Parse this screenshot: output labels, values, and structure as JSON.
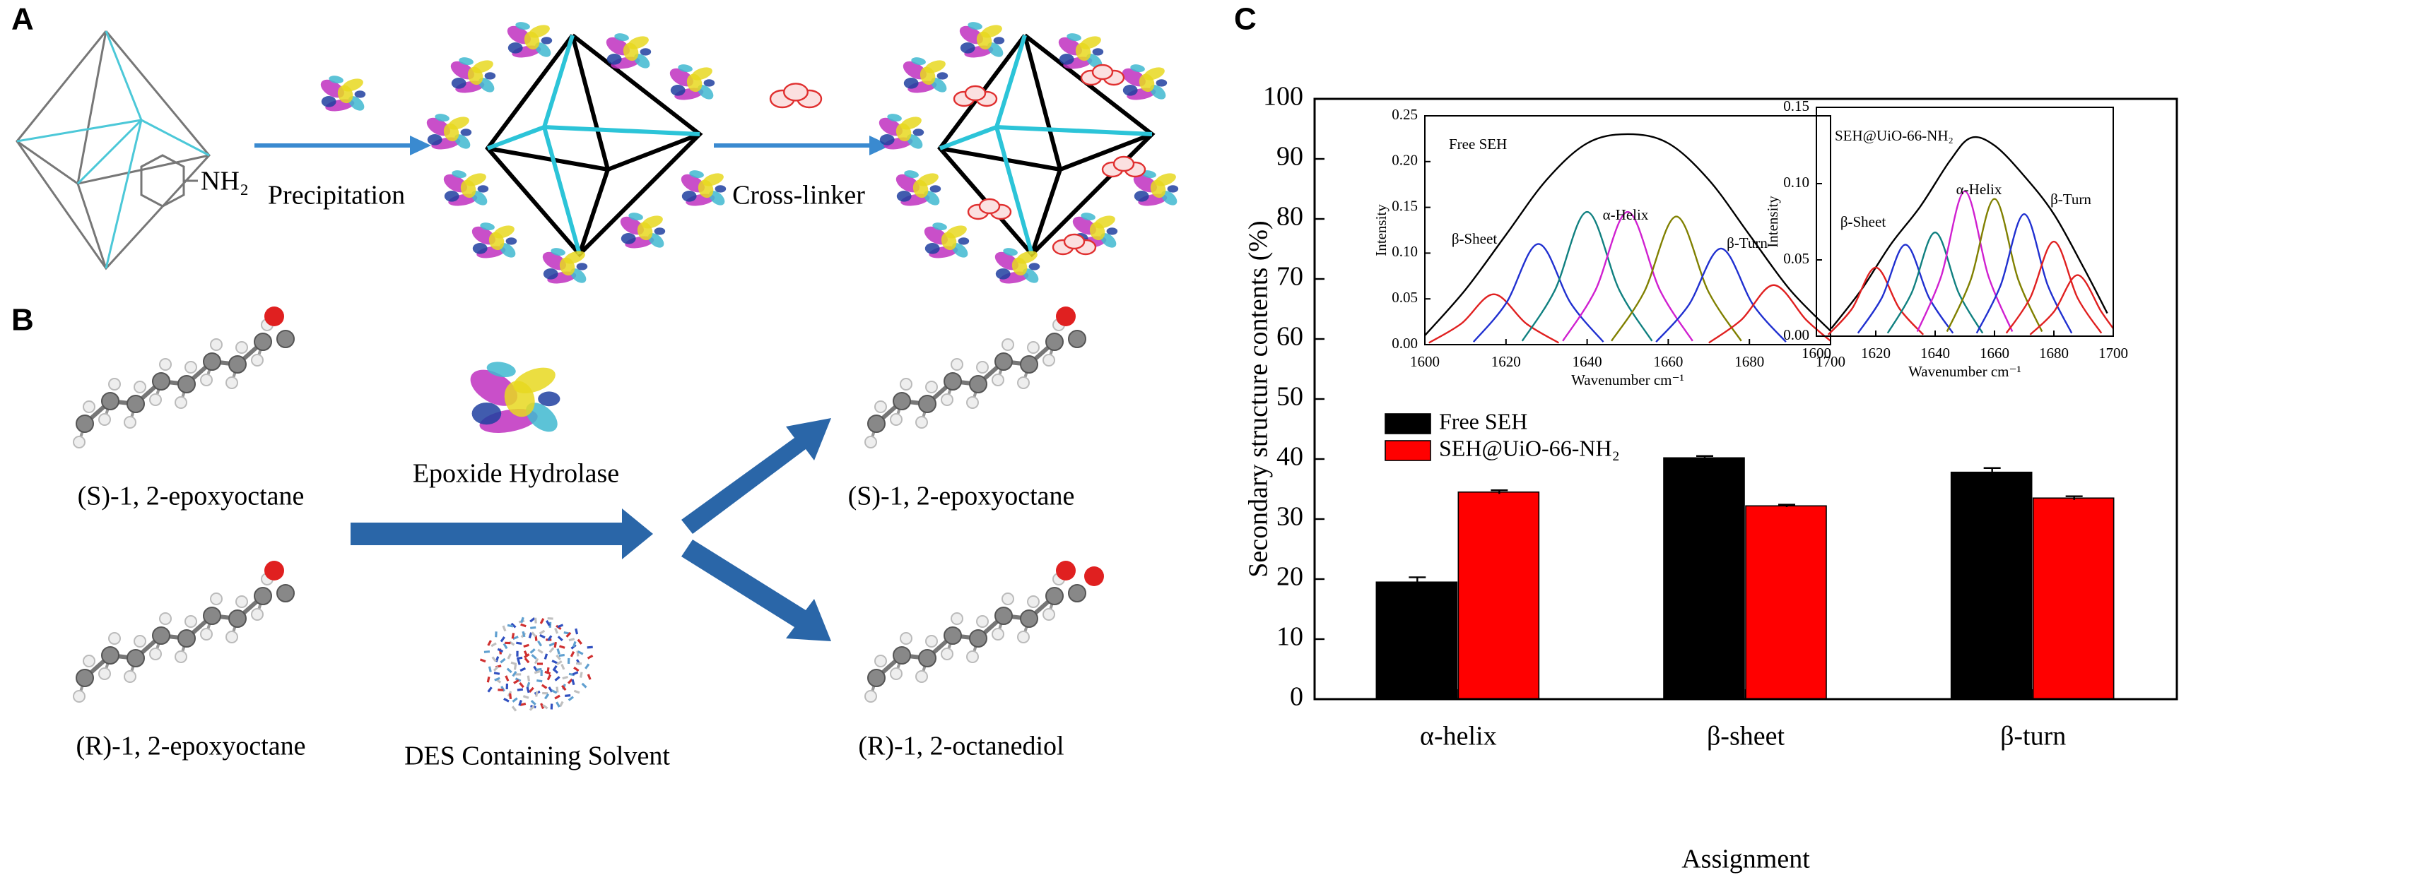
{
  "panel_a": {
    "label": "A",
    "nh2": "NH₂",
    "step1": "Precipitation",
    "step2": "Cross-linker"
  },
  "panel_b": {
    "label": "B",
    "substrate_s": "(S)-1, 2-epoxyoctane",
    "substrate_r": "(R)-1, 2-epoxyoctane",
    "enzyme": "Epoxide Hydrolase",
    "solvent": "DES Containing Solvent",
    "product_s": "(S)-1, 2-epoxyoctane",
    "product_r": "(R)-1, 2-octanediol"
  },
  "panel_c": {
    "label": "C"
  },
  "chart_data": [
    {
      "type": "bar",
      "ylabel": "Secondary structure contents (%)",
      "xlabel": "Assignment",
      "categories": [
        "α-helix",
        "β-sheet",
        "β-turn"
      ],
      "series": [
        {
          "name": "Free SEH",
          "color": "#000000",
          "values": [
            19.5,
            40.2,
            37.8
          ],
          "errors": [
            0.8,
            0.3,
            0.7
          ]
        },
        {
          "name": "SEH@UiO-66-NH₂",
          "color": "#ff0000",
          "values": [
            34.5,
            32.2,
            33.5
          ],
          "errors": [
            0.3,
            0.2,
            0.3
          ]
        }
      ],
      "ylim": [
        0,
        100
      ],
      "yticks": [
        0,
        10,
        20,
        30,
        40,
        50,
        60,
        70,
        80,
        90,
        100
      ]
    },
    {
      "type": "line",
      "title": "Free SEH",
      "ylabel": "Intensity",
      "xlabel": "Wavenumber cm⁻¹",
      "annotations": [
        "β-Sheet",
        "α-Helix",
        "β-Turn"
      ],
      "xlim": [
        1600,
        1700
      ],
      "xticks": [
        1600,
        1620,
        1640,
        1660,
        1680,
        1700
      ],
      "ylim": [
        0,
        0.25
      ],
      "yticks": [
        {
          "value": 0,
          "label": "0.00"
        },
        0.05,
        {
          "value": 0.1,
          "label": "0.10"
        },
        0.15,
        {
          "value": 0.2,
          "label": "0.20"
        },
        0.25
      ],
      "series": [
        {
          "color": "#000000",
          "x": [
            1600,
            1610,
            1620,
            1630,
            1640,
            1650,
            1660,
            1670,
            1680,
            1690,
            1700
          ],
          "values": [
            0.01,
            0.06,
            0.12,
            0.18,
            0.22,
            0.23,
            0.22,
            0.18,
            0.12,
            0.06,
            0.015
          ]
        },
        {
          "color": "#e02020",
          "x": [
            1601,
            1609,
            1617,
            1625,
            1633
          ],
          "values": [
            0.002,
            0.023,
            0.055,
            0.023,
            0.002
          ]
        },
        {
          "color": "#2030d0",
          "x": [
            1612,
            1620,
            1628,
            1636,
            1644
          ],
          "values": [
            0.003,
            0.045,
            0.11,
            0.045,
            0.003
          ]
        },
        {
          "color": "#108080",
          "x": [
            1624,
            1632,
            1640,
            1648,
            1656
          ],
          "values": [
            0.004,
            0.059,
            0.145,
            0.059,
            0.004
          ]
        },
        {
          "color": "#d020d0",
          "x": [
            1634,
            1642,
            1650,
            1658,
            1666
          ],
          "values": [
            0.004,
            0.059,
            0.145,
            0.059,
            0.004
          ]
        },
        {
          "color": "#808000",
          "x": [
            1646,
            1654,
            1662,
            1670,
            1678
          ],
          "values": [
            0.004,
            0.057,
            0.14,
            0.057,
            0.004
          ]
        },
        {
          "color": "#2030d0",
          "x": [
            1657,
            1665,
            1673,
            1681,
            1689
          ],
          "values": [
            0.003,
            0.043,
            0.105,
            0.043,
            0.003
          ]
        },
        {
          "color": "#e02020",
          "x": [
            1670,
            1678,
            1686,
            1694,
            1700
          ],
          "values": [
            0.002,
            0.027,
            0.065,
            0.027,
            0.004
          ]
        }
      ]
    },
    {
      "type": "line",
      "title": "SEH@UiO-66-NH₂",
      "ylabel": "Intensity",
      "xlabel": "Wavenumber cm⁻¹",
      "annotations": [
        "β-Sheet",
        "α-Helix",
        "β-Turn"
      ],
      "xlim": [
        1600,
        1700
      ],
      "xticks": [
        1600,
        1620,
        1640,
        1660,
        1680,
        1700
      ],
      "ylim": [
        0,
        0.15
      ],
      "yticks": [
        {
          "value": 0,
          "label": "0.00"
        },
        0.05,
        {
          "value": 0.1,
          "label": "0.10"
        },
        0.15
      ],
      "series": [
        {
          "color": "#000000",
          "x": [
            1605,
            1615,
            1625,
            1635,
            1645,
            1652,
            1660,
            1670,
            1680,
            1690,
            1698
          ],
          "values": [
            0.005,
            0.03,
            0.06,
            0.085,
            0.115,
            0.13,
            0.125,
            0.105,
            0.08,
            0.045,
            0.015
          ]
        },
        {
          "color": "#e02020",
          "x": [
            1604,
            1612,
            1620,
            1628,
            1636
          ],
          "values": [
            0.001,
            0.018,
            0.045,
            0.018,
            0.001
          ]
        },
        {
          "color": "#2030d0",
          "x": [
            1614,
            1622,
            1630,
            1638,
            1646
          ],
          "values": [
            0.002,
            0.025,
            0.06,
            0.025,
            0.002
          ]
        },
        {
          "color": "#108080",
          "x": [
            1624,
            1632,
            1640,
            1648,
            1656
          ],
          "values": [
            0.002,
            0.028,
            0.068,
            0.028,
            0.002
          ]
        },
        {
          "color": "#d020d0",
          "x": [
            1634,
            1642,
            1650,
            1658,
            1666
          ],
          "values": [
            0.003,
            0.039,
            0.095,
            0.039,
            0.003
          ]
        },
        {
          "color": "#808000",
          "x": [
            1644,
            1652,
            1660,
            1668,
            1676
          ],
          "values": [
            0.003,
            0.037,
            0.09,
            0.037,
            0.003
          ]
        },
        {
          "color": "#2030d0",
          "x": [
            1654,
            1662,
            1670,
            1678,
            1686
          ],
          "values": [
            0.002,
            0.033,
            0.08,
            0.033,
            0.002
          ]
        },
        {
          "color": "#e02020",
          "x": [
            1664,
            1672,
            1680,
            1688,
            1696
          ],
          "values": [
            0.002,
            0.025,
            0.062,
            0.025,
            0.002
          ]
        },
        {
          "color": "#e02020",
          "x": [
            1672,
            1680,
            1688,
            1696,
            1700
          ],
          "values": [
            0.001,
            0.016,
            0.04,
            0.016,
            0.005
          ]
        }
      ]
    }
  ]
}
